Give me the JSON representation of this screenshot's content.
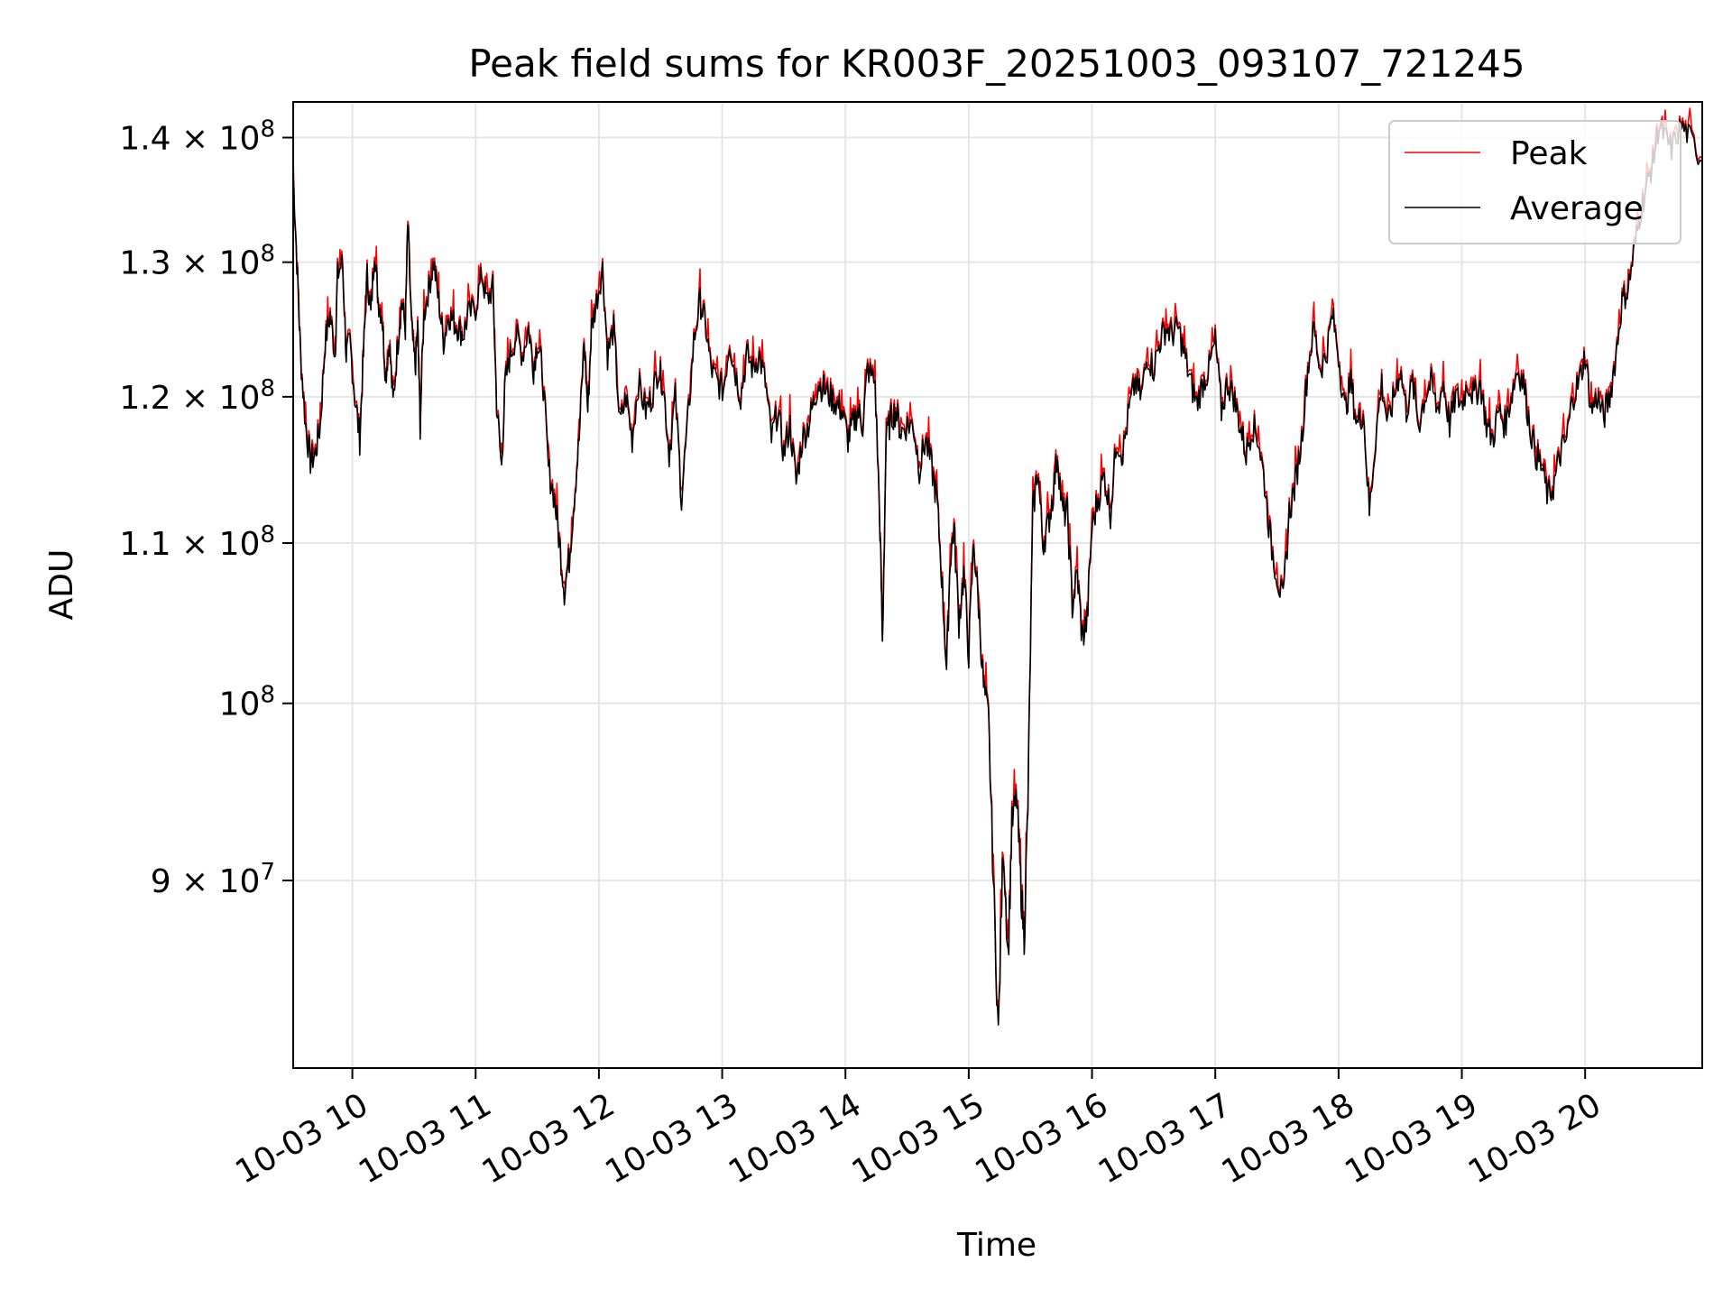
{
  "chart_data": {
    "type": "line",
    "title": "Peak field sums for KR003F_20251003_093107_721245",
    "xlabel": "Time",
    "ylabel": "ADU",
    "yscale": "log",
    "ylim": [
      80500000,
      143000000
    ],
    "xlim_hours": [
      9.52,
      20.95
    ],
    "grid": true,
    "legend_position": "top-right",
    "x_ticks": [
      {
        "hour": 10,
        "label": "10-03 10"
      },
      {
        "hour": 11,
        "label": "10-03 11"
      },
      {
        "hour": 12,
        "label": "10-03 12"
      },
      {
        "hour": 13,
        "label": "10-03 13"
      },
      {
        "hour": 14,
        "label": "10-03 14"
      },
      {
        "hour": 15,
        "label": "10-03 15"
      },
      {
        "hour": 16,
        "label": "10-03 16"
      },
      {
        "hour": 17,
        "label": "10-03 17"
      },
      {
        "hour": 18,
        "label": "10-03 18"
      },
      {
        "hour": 19,
        "label": "10-03 19"
      },
      {
        "hour": 20,
        "label": "10-03 20"
      }
    ],
    "y_ticks": [
      {
        "value": 90000000,
        "mantissa": "9",
        "exponent": "7",
        "times": "×",
        "base": "10"
      },
      {
        "value": 100000000,
        "mantissa": "",
        "exponent": "8",
        "times": "",
        "base": "10"
      },
      {
        "value": 110000000,
        "mantissa": "1.1",
        "exponent": "8",
        "times": "×",
        "base": "10"
      },
      {
        "value": 120000000,
        "mantissa": "1.2",
        "exponent": "8",
        "times": "×",
        "base": "10"
      },
      {
        "value": 130000000,
        "mantissa": "1.3",
        "exponent": "8",
        "times": "×",
        "base": "10"
      },
      {
        "value": 140000000,
        "mantissa": "1.4",
        "exponent": "8",
        "times": "×",
        "base": "10"
      }
    ],
    "series": [
      {
        "name": "Peak",
        "color": "#ff0000",
        "offset": 300000,
        "points": []
      },
      {
        "name": "Average",
        "color": "#000000",
        "points": [
          [
            9.52,
            137
          ],
          [
            9.55,
            130
          ],
          [
            9.58,
            123
          ],
          [
            9.62,
            118
          ],
          [
            9.66,
            115.5
          ],
          [
            9.7,
            116
          ],
          [
            9.74,
            118
          ],
          [
            9.78,
            124
          ],
          [
            9.82,
            126
          ],
          [
            9.86,
            123
          ],
          [
            9.88,
            129
          ],
          [
            9.92,
            130
          ],
          [
            9.95,
            123
          ],
          [
            9.98,
            124
          ],
          [
            10.02,
            120
          ],
          [
            10.06,
            117
          ],
          [
            10.09,
            123
          ],
          [
            10.12,
            129
          ],
          [
            10.15,
            126
          ],
          [
            10.18,
            131
          ],
          [
            10.21,
            127
          ],
          [
            10.24,
            126
          ],
          [
            10.27,
            121.5
          ],
          [
            10.3,
            124
          ],
          [
            10.33,
            119.5
          ],
          [
            10.37,
            124
          ],
          [
            10.4,
            127
          ],
          [
            10.43,
            125
          ],
          [
            10.45,
            133
          ],
          [
            10.48,
            125
          ],
          [
            10.51,
            122
          ],
          [
            10.53,
            125
          ],
          [
            10.55,
            118
          ],
          [
            10.58,
            126
          ],
          [
            10.62,
            128
          ],
          [
            10.66,
            130
          ],
          [
            10.7,
            127
          ],
          [
            10.74,
            124
          ],
          [
            10.78,
            126
          ],
          [
            10.82,
            125.5
          ],
          [
            10.86,
            125
          ],
          [
            10.9,
            124.5
          ],
          [
            10.94,
            126
          ],
          [
            11.0,
            126.5
          ],
          [
            11.05,
            129
          ],
          [
            11.09,
            127
          ],
          [
            11.14,
            128
          ],
          [
            11.17,
            119.5
          ],
          [
            11.21,
            115
          ],
          [
            11.24,
            121
          ],
          [
            11.28,
            123
          ],
          [
            11.33,
            124.5
          ],
          [
            11.38,
            123
          ],
          [
            11.43,
            125
          ],
          [
            11.47,
            122
          ],
          [
            11.5,
            124
          ],
          [
            11.54,
            122
          ],
          [
            11.59,
            115
          ],
          [
            11.64,
            113
          ],
          [
            11.68,
            110
          ],
          [
            11.72,
            107
          ],
          [
            11.76,
            109
          ],
          [
            11.8,
            113
          ],
          [
            11.84,
            117
          ],
          [
            11.88,
            124
          ],
          [
            11.91,
            119
          ],
          [
            11.94,
            125
          ],
          [
            11.98,
            127
          ],
          [
            12.03,
            129.5
          ],
          [
            12.07,
            123
          ],
          [
            12.12,
            125
          ],
          [
            12.17,
            118
          ],
          [
            12.22,
            120
          ],
          [
            12.27,
            117
          ],
          [
            12.32,
            121
          ],
          [
            12.38,
            119
          ],
          [
            12.43,
            120
          ],
          [
            12.48,
            122
          ],
          [
            12.52,
            121
          ],
          [
            12.57,
            116
          ],
          [
            12.62,
            120
          ],
          [
            12.67,
            113
          ],
          [
            12.72,
            118
          ],
          [
            12.77,
            124
          ],
          [
            12.82,
            127
          ],
          [
            12.86,
            125.5
          ],
          [
            12.91,
            122
          ],
          [
            12.96,
            121
          ],
          [
            13.01,
            120.5
          ],
          [
            13.06,
            124
          ],
          [
            13.1,
            122
          ],
          [
            13.15,
            120
          ],
          [
            13.2,
            123
          ],
          [
            13.25,
            122
          ],
          [
            13.3,
            123
          ],
          [
            13.35,
            121
          ],
          [
            13.4,
            117
          ],
          [
            13.45,
            119
          ],
          [
            13.5,
            116
          ],
          [
            13.55,
            118
          ],
          [
            13.6,
            114
          ],
          [
            13.65,
            117
          ],
          [
            13.7,
            118
          ],
          [
            13.74,
            119.5
          ],
          [
            13.78,
            121
          ],
          [
            13.83,
            120.5
          ],
          [
            13.88,
            120
          ],
          [
            13.93,
            119.5
          ],
          [
            13.97,
            119
          ],
          [
            14.02,
            117
          ],
          [
            14.06,
            118
          ],
          [
            14.1,
            119
          ],
          [
            14.14,
            118
          ],
          [
            14.18,
            122
          ],
          [
            14.24,
            121
          ],
          [
            14.28,
            111
          ],
          [
            14.3,
            103.5
          ],
          [
            14.33,
            117
          ],
          [
            14.37,
            118.5
          ],
          [
            14.41,
            119
          ],
          [
            14.45,
            117.5
          ],
          [
            14.5,
            118
          ],
          [
            14.55,
            118
          ],
          [
            14.6,
            115
          ],
          [
            14.65,
            117
          ],
          [
            14.7,
            115
          ],
          [
            14.74,
            113
          ],
          [
            14.78,
            108
          ],
          [
            14.82,
            102
          ],
          [
            14.85,
            109
          ],
          [
            14.88,
            111
          ],
          [
            14.92,
            105
          ],
          [
            14.96,
            108
          ],
          [
            15.0,
            103
          ],
          [
            15.04,
            110
          ],
          [
            15.08,
            106
          ],
          [
            15.12,
            101
          ],
          [
            15.16,
            99
          ],
          [
            15.2,
            90
          ],
          [
            15.24,
            82
          ],
          [
            15.28,
            92
          ],
          [
            15.32,
            86
          ],
          [
            15.35,
            93
          ],
          [
            15.39,
            94.5
          ],
          [
            15.42,
            90
          ],
          [
            15.45,
            87
          ],
          [
            15.48,
            94
          ],
          [
            15.52,
            112
          ],
          [
            15.56,
            115
          ],
          [
            15.6,
            110
          ],
          [
            15.64,
            111
          ],
          [
            15.68,
            113
          ],
          [
            15.72,
            116
          ],
          [
            15.76,
            112
          ],
          [
            15.8,
            112
          ],
          [
            15.84,
            106
          ],
          [
            15.88,
            108
          ],
          [
            15.92,
            104
          ],
          [
            15.96,
            105
          ],
          [
            16.0,
            111
          ],
          [
            16.05,
            113
          ],
          [
            16.1,
            114.5
          ],
          [
            16.15,
            112
          ],
          [
            16.2,
            117
          ],
          [
            16.25,
            116
          ],
          [
            16.3,
            119
          ],
          [
            16.35,
            121
          ],
          [
            16.4,
            120
          ],
          [
            16.45,
            123
          ],
          [
            16.5,
            122
          ],
          [
            16.55,
            124
          ],
          [
            16.6,
            125
          ],
          [
            16.65,
            124.5
          ],
          [
            16.7,
            125
          ],
          [
            16.75,
            123
          ],
          [
            16.8,
            121
          ],
          [
            16.85,
            119.5
          ],
          [
            16.9,
            121
          ],
          [
            16.95,
            122
          ],
          [
            17.0,
            124
          ],
          [
            17.05,
            119
          ],
          [
            17.1,
            121
          ],
          [
            17.15,
            120
          ],
          [
            17.2,
            118
          ],
          [
            17.25,
            116
          ],
          [
            17.3,
            118
          ],
          [
            17.35,
            117
          ],
          [
            17.4,
            114
          ],
          [
            17.45,
            110
          ],
          [
            17.5,
            108
          ],
          [
            17.55,
            106
          ],
          [
            17.6,
            112
          ],
          [
            17.65,
            114
          ],
          [
            17.7,
            117
          ],
          [
            17.75,
            122
          ],
          [
            17.8,
            125
          ],
          [
            17.85,
            122
          ],
          [
            17.9,
            123
          ],
          [
            17.95,
            126
          ],
          [
            18.0,
            123
          ],
          [
            18.05,
            119
          ],
          [
            18.1,
            121
          ],
          [
            18.15,
            118
          ],
          [
            18.2,
            119
          ],
          [
            18.25,
            112
          ],
          [
            18.3,
            117
          ],
          [
            18.35,
            121
          ],
          [
            18.4,
            118
          ],
          [
            18.45,
            120
          ],
          [
            18.5,
            122
          ],
          [
            18.55,
            119
          ],
          [
            18.6,
            121
          ],
          [
            18.65,
            118
          ],
          [
            18.7,
            120
          ],
          [
            18.75,
            121
          ],
          [
            18.8,
            119
          ],
          [
            18.85,
            121
          ],
          [
            18.9,
            118
          ],
          [
            18.95,
            120
          ],
          [
            19.0,
            119.5
          ],
          [
            19.05,
            121
          ],
          [
            19.1,
            120
          ],
          [
            19.15,
            121
          ],
          [
            19.2,
            118
          ],
          [
            19.25,
            117
          ],
          [
            19.3,
            119
          ],
          [
            19.35,
            118
          ],
          [
            19.4,
            120
          ],
          [
            19.45,
            122
          ],
          [
            19.5,
            121
          ],
          [
            19.55,
            118
          ],
          [
            19.6,
            116
          ],
          [
            19.65,
            115
          ],
          [
            19.7,
            113
          ],
          [
            19.75,
            114
          ],
          [
            19.8,
            116
          ],
          [
            19.85,
            117
          ],
          [
            19.9,
            120
          ],
          [
            19.95,
            121
          ],
          [
            20.0,
            123
          ],
          [
            20.05,
            119
          ],
          [
            20.1,
            120
          ],
          [
            20.15,
            118.5
          ],
          [
            20.2,
            120
          ],
          [
            20.25,
            123
          ],
          [
            20.3,
            127
          ],
          [
            20.35,
            128
          ],
          [
            20.4,
            131
          ],
          [
            20.45,
            134
          ],
          [
            20.5,
            136
          ],
          [
            20.55,
            138
          ],
          [
            20.6,
            141
          ],
          [
            20.65,
            140
          ],
          [
            20.7,
            139
          ],
          [
            20.78,
            141
          ],
          [
            20.85,
            140
          ],
          [
            20.95,
            138
          ]
        ]
      }
    ]
  }
}
